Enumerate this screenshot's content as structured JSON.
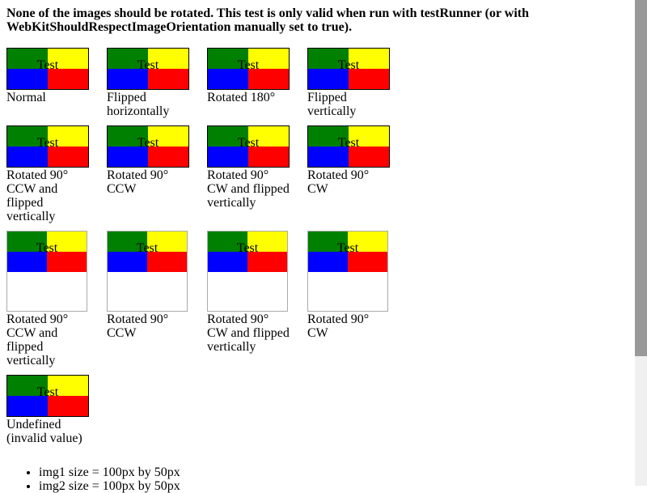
{
  "header": {
    "title": "None of the images should be rotated. This test is only valid when run with testRunner (or with WebKitShouldRespectImageOrientation manually set to true)."
  },
  "image_text": "Test",
  "figures": [
    {
      "caption": "Normal"
    },
    {
      "caption": "Flipped horizontally"
    },
    {
      "caption": "Rotated 180°"
    },
    {
      "caption": "Flipped vertically"
    },
    {
      "caption": "Rotated 90° CCW and flipped vertically"
    },
    {
      "caption": "Rotated 90° CCW"
    },
    {
      "caption": "Rotated 90° CW and flipped vertically"
    },
    {
      "caption": "Rotated 90° CW"
    },
    {
      "caption": "Rotated 90° CCW and flipped vertically"
    },
    {
      "caption": "Rotated 90° CCW"
    },
    {
      "caption": "Rotated 90° CW and flipped vertically"
    },
    {
      "caption": "Rotated 90° CW"
    },
    {
      "caption": "Undefined (invalid value)"
    }
  ],
  "sizes": [
    "img1 size = 100px by 50px",
    "img2 size = 100px by 50px"
  ]
}
